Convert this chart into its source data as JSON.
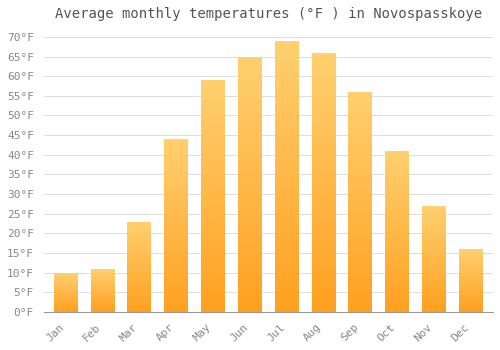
{
  "title": "Average monthly temperatures (°F ) in Novospasskoye",
  "months": [
    "Jan",
    "Feb",
    "Mar",
    "Apr",
    "May",
    "Jun",
    "Jul",
    "Aug",
    "Sep",
    "Oct",
    "Nov",
    "Dec"
  ],
  "values": [
    10,
    11,
    23,
    44,
    59,
    65,
    69,
    66,
    56,
    41,
    27,
    16
  ],
  "bar_color_top": "#FFD070",
  "bar_color_bottom": "#FFA020",
  "background_color": "#FFFFFF",
  "grid_color": "#DDDDDD",
  "text_color": "#888888",
  "ylim": [
    0,
    72
  ],
  "yticks": [
    0,
    5,
    10,
    15,
    20,
    25,
    30,
    35,
    40,
    45,
    50,
    55,
    60,
    65,
    70
  ],
  "title_fontsize": 10,
  "tick_fontsize": 8,
  "bar_width": 0.65
}
